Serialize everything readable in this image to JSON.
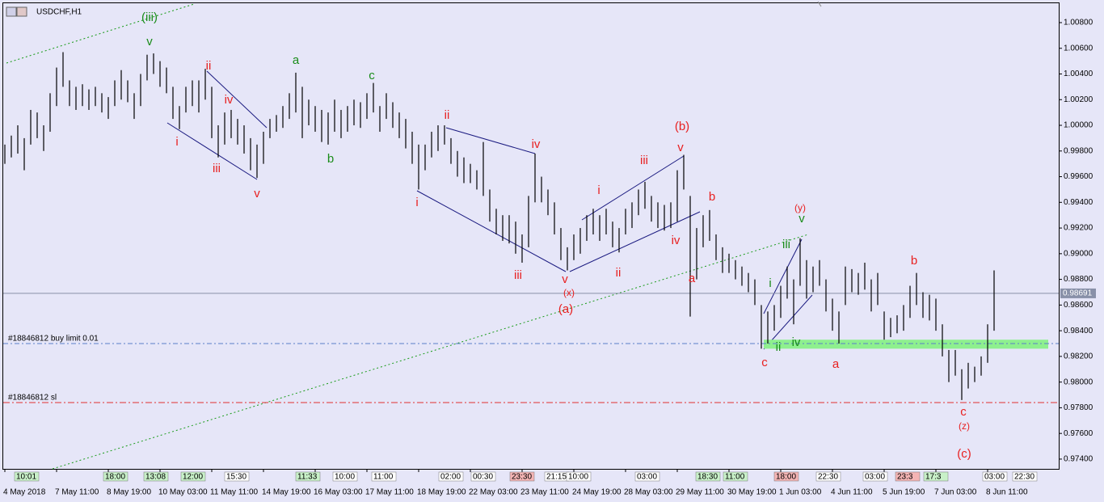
{
  "chart_data": {
    "type": "bar-chart-ohlc",
    "title": "USDCHF,H1",
    "ylim": [
      0.97324,
      1.00951
    ],
    "yticks": [
      {
        "value": 1.008,
        "label": "1.00800"
      },
      {
        "value": 1.006,
        "label": "1.00600"
      },
      {
        "value": 1.004,
        "label": "1.00400"
      },
      {
        "value": 1.002,
        "label": "1.00200"
      },
      {
        "value": 1.0,
        "label": "1.00000"
      },
      {
        "value": 0.998,
        "label": "0.99800"
      },
      {
        "value": 0.996,
        "label": "0.99600"
      },
      {
        "value": 0.994,
        "label": "0.99400"
      },
      {
        "value": 0.992,
        "label": "0.99200"
      },
      {
        "value": 0.99,
        "label": "0.99000"
      },
      {
        "value": 0.988,
        "label": "0.98800"
      },
      {
        "value": 0.986,
        "label": "0.98600"
      },
      {
        "value": 0.984,
        "label": "0.98400"
      },
      {
        "value": 0.982,
        "label": "0.98200"
      },
      {
        "value": 0.98,
        "label": "0.98000"
      },
      {
        "value": 0.978,
        "label": "0.97800"
      },
      {
        "value": 0.976,
        "label": "0.97600"
      },
      {
        "value": 0.974,
        "label": "0.97400"
      }
    ],
    "xticks": [
      {
        "value": 0,
        "label": "4 May 2018"
      },
      {
        "value": 8,
        "label": "7 May 11:00"
      },
      {
        "value": 16,
        "label": "8 May 19:00"
      },
      {
        "value": 24,
        "label": "10 May 03:00"
      },
      {
        "value": 32,
        "label": "11 May 11:00"
      },
      {
        "value": 40,
        "label": "14 May 19:00"
      },
      {
        "value": 48,
        "label": "16 May 03:00"
      },
      {
        "value": 56,
        "label": "17 May 11:00"
      },
      {
        "value": 64,
        "label": "18 May 19:00"
      },
      {
        "value": 72,
        "label": "22 May 03:00"
      },
      {
        "value": 80,
        "label": "23 May 11:00"
      },
      {
        "value": 88,
        "label": "24 May 19:00"
      },
      {
        "value": 96,
        "label": "28 May 03:00"
      },
      {
        "value": 104,
        "label": "29 May 11:00"
      },
      {
        "value": 112,
        "label": "30 May 19:00"
      },
      {
        "value": 120,
        "label": "1 Jun 03:00"
      },
      {
        "value": 128,
        "label": "4 Jun 11:00"
      },
      {
        "value": 136,
        "label": "5 Jun 19:00"
      },
      {
        "value": 144,
        "label": "7 Jun 03:00"
      },
      {
        "value": 152,
        "label": "8 Jun 11:00"
      }
    ],
    "color": "#000000",
    "high": [
      0.9985,
      0.9992,
      1.0,
      0.999,
      1.0012,
      1.001,
      1.0,
      1.0025,
      1.0045,
      1.0057,
      1.0035,
      1.003,
      1.0032,
      1.0028,
      1.003,
      1.0025,
      1.0022,
      1.0035,
      1.0043,
      1.0035,
      1.0025,
      1.004,
      1.0055,
      1.0056,
      1.005,
      1.0045,
      1.003,
      1.0015,
      1.003,
      1.0035,
      1.0035,
      1.0044,
      1.003,
      1.0,
      1.001,
      1.0012,
      1.0005,
      1.0,
      0.999,
      0.9985,
      0.9995,
      1.0005,
      1.0008,
      1.0015,
      1.0025,
      1.0041,
      1.003,
      1.002,
      1.0015,
      1.0012,
      1.001,
      1.002,
      1.0012,
      1.0015,
      1.002,
      1.0018,
      1.0025,
      1.0033,
      1.0015,
      1.0025,
      1.0018,
      1.001,
      1.0005,
      0.9995,
      0.9985,
      0.9985,
      0.9995,
      1.0,
      1.0,
      0.999,
      0.998,
      0.9975,
      0.997,
      0.9965,
      0.9987,
      0.995,
      0.9935,
      0.993,
      0.993,
      0.9925,
      0.9915,
      0.9945,
      0.9978,
      0.996,
      0.995,
      0.994,
      0.992,
      0.9905,
      0.9915,
      0.992,
      0.993,
      0.9935,
      0.993,
      0.9935,
      0.9925,
      0.992,
      0.9935,
      0.994,
      0.995,
      0.9956,
      0.9945,
      0.994,
      0.9938,
      0.994,
      0.9965,
      0.9977,
      0.9945,
      0.992,
      0.993,
      0.9934,
      0.9915,
      0.9905,
      0.99,
      0.9895,
      0.989,
      0.9885,
      0.988,
      0.986,
      0.9855,
      0.986,
      0.9875,
      0.989,
      0.988,
      0.9912,
      0.9895,
      0.989,
      0.9895,
      0.988,
      0.9865,
      0.9855,
      0.989,
      0.9888,
      0.9885,
      0.9893,
      0.988,
      0.9885,
      0.9855,
      0.985,
      0.9852,
      0.986,
      0.9875,
      0.9885,
      0.987,
      0.9868,
      0.9865,
      0.9845,
      0.9825,
      0.9825,
      0.981,
      0.9815,
      0.9812,
      0.982,
      0.9845,
      0.9887
    ],
    "low": [
      0.997,
      0.9975,
      0.9978,
      0.9965,
      0.9985,
      0.999,
      0.998,
      0.9995,
      1.0015,
      1.003,
      1.0015,
      1.0012,
      1.0015,
      1.0012,
      1.0015,
      1.001,
      1.0005,
      1.0015,
      1.002,
      1.0018,
      1.0005,
      1.0015,
      1.0035,
      1.004,
      1.003,
      1.0025,
      1.0005,
      0.9997,
      1.001,
      1.0015,
      1.001,
      1.002,
      0.999,
      0.9975,
      0.9985,
      0.999,
      0.9985,
      0.9978,
      0.9965,
      0.9959,
      0.997,
      0.999,
      0.9995,
      0.9998,
      1.0005,
      1.001,
      0.999,
      1.0,
      0.9995,
      0.9987,
      0.9985,
      0.9995,
      0.999,
      0.9995,
      1.0,
      0.9998,
      1.0005,
      1.001,
      0.9995,
      1.0005,
      0.9998,
      0.999,
      0.9982,
      0.997,
      0.995,
      0.9965,
      0.9975,
      0.998,
      0.9985,
      0.997,
      0.996,
      0.9955,
      0.9955,
      0.995,
      0.9945,
      0.9925,
      0.9915,
      0.991,
      0.9908,
      0.99,
      0.9893,
      0.9905,
      0.994,
      0.994,
      0.993,
      0.9915,
      0.9895,
      0.9887,
      0.9895,
      0.99,
      0.991,
      0.9915,
      0.991,
      0.9915,
      0.9905,
      0.9901,
      0.9915,
      0.992,
      0.993,
      0.9935,
      0.9925,
      0.992,
      0.9918,
      0.992,
      0.9925,
      0.995,
      0.9851,
      0.988,
      0.9905,
      0.991,
      0.9895,
      0.9885,
      0.9885,
      0.988,
      0.9875,
      0.987,
      0.986,
      0.9826,
      0.983,
      0.984,
      0.985,
      0.9865,
      0.9845,
      0.9875,
      0.9865,
      0.987,
      0.9875,
      0.9855,
      0.984,
      0.983,
      0.986,
      0.987,
      0.9868,
      0.9872,
      0.9855,
      0.986,
      0.9833,
      0.9835,
      0.9838,
      0.984,
      0.985,
      0.986,
      0.985,
      0.9848,
      0.984,
      0.982,
      0.98,
      0.9805,
      0.9786,
      0.9795,
      0.98,
      0.9805,
      0.9815,
      0.984
    ],
    "current_price": {
      "value": 0.98691,
      "label": "0.98691"
    },
    "levels": [
      {
        "name": "#18846812 buy limit 0.01",
        "value": 0.983,
        "color": "#5b7fc9"
      },
      {
        "name": "#18846812 sl",
        "value": 0.9784,
        "color": "#e03030"
      }
    ],
    "zone": {
      "low": 0.9826,
      "high": 0.9833,
      "color": "#8ef08e"
    },
    "annotations": [
      {
        "text": "(iii)",
        "color": "#1a8c1a"
      },
      {
        "text": "v",
        "color": "#1a8c1a"
      },
      {
        "text": "ii",
        "color": "#e82020"
      },
      {
        "text": "iv",
        "color": "#e82020"
      },
      {
        "text": "i",
        "color": "#e82020"
      },
      {
        "text": "iii",
        "color": "#e82020"
      },
      {
        "text": "v",
        "color": "#e82020"
      },
      {
        "text": "a",
        "color": "#1a8c1a"
      },
      {
        "text": "b",
        "color": "#1a8c1a"
      },
      {
        "text": "c",
        "color": "#1a8c1a"
      },
      {
        "text": "ii",
        "color": "#e82020"
      },
      {
        "text": "iv",
        "color": "#e82020"
      },
      {
        "text": "i",
        "color": "#e82020"
      },
      {
        "text": "iii",
        "color": "#e82020"
      },
      {
        "text": "v",
        "color": "#e82020"
      },
      {
        "text": "(x)",
        "color": "#e82020"
      },
      {
        "text": "(a)",
        "color": "#e82020"
      },
      {
        "text": "i",
        "color": "#e82020"
      },
      {
        "text": "iii",
        "color": "#e82020"
      },
      {
        "text": "ii",
        "color": "#e82020"
      },
      {
        "text": "(b)",
        "color": "#e82020"
      },
      {
        "text": "v",
        "color": "#e82020"
      },
      {
        "text": "iv",
        "color": "#e82020"
      },
      {
        "text": "b",
        "color": "#e82020"
      },
      {
        "text": "a",
        "color": "#e82020"
      },
      {
        "text": "(y)",
        "color": "#e82020"
      },
      {
        "text": "v",
        "color": "#1a8c1a"
      },
      {
        "text": "iii",
        "color": "#1a8c1a"
      },
      {
        "text": "i",
        "color": "#1a8c1a"
      },
      {
        "text": "ii",
        "color": "#1a8c1a"
      },
      {
        "text": "iv",
        "color": "#1a8c1a"
      },
      {
        "text": "c",
        "color": "#e82020"
      },
      {
        "text": "a",
        "color": "#e82020"
      },
      {
        "text": "b",
        "color": "#e82020"
      },
      {
        "text": "c",
        "color": "#e82020"
      },
      {
        "text": "(z)",
        "color": "#e82020"
      },
      {
        "text": "(c)",
        "color": "#e82020"
      }
    ],
    "trade_markers": [
      {
        "text": "10:01",
        "color": "#c8f0c8"
      },
      {
        "text": "18:00",
        "color": "#c8f0c8"
      },
      {
        "text": "13:08",
        "color": "#c8f0c8"
      },
      {
        "text": "12:00",
        "color": "#c8f0c8"
      },
      {
        "text": "15:30",
        "color": "#ffffff"
      },
      {
        "text": "11:33",
        "color": "#c8f0c8"
      },
      {
        "text": "10:00",
        "color": "#ffffff"
      },
      {
        "text": "11:00",
        "color": "#ffffff"
      },
      {
        "text": "02:00",
        "color": "#ffffff"
      },
      {
        "text": "00:30",
        "color": "#ffffff"
      },
      {
        "text": "23:30",
        "color": "#f4b4b4"
      },
      {
        "text": "21:15",
        "color": "#ffffff"
      },
      {
        "text": "10:00",
        "color": "#ffffff"
      },
      {
        "text": "03:00",
        "color": "#ffffff"
      },
      {
        "text": "18:30",
        "color": "#c8f0c8"
      },
      {
        "text": "11:00",
        "color": "#c8f0c8"
      },
      {
        "text": "18:00",
        "color": "#f4b4b4"
      },
      {
        "text": "22:30",
        "color": "#ffffff"
      },
      {
        "text": "03:00",
        "color": "#ffffff"
      },
      {
        "text": "23:3",
        "color": "#f4b4b4"
      },
      {
        "text": "17:3",
        "color": "#c8f0c8"
      },
      {
        "text": "03:00",
        "color": "#ffffff"
      },
      {
        "text": "22:30",
        "color": "#ffffff"
      }
    ]
  }
}
